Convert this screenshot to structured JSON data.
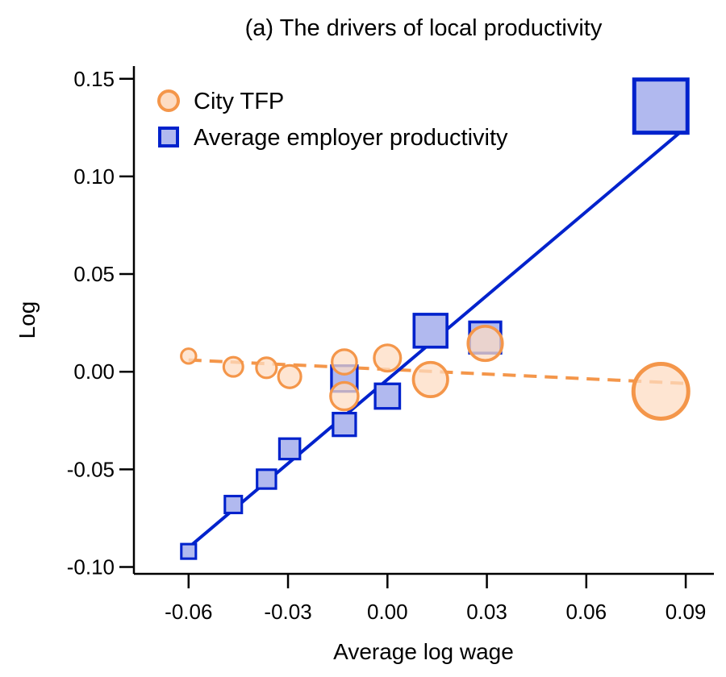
{
  "chart_data": {
    "type": "scatter",
    "title": "(a) The drivers of local productivity",
    "xlabel": "Average log wage",
    "ylabel": "Log",
    "xlim": [
      -0.0765,
      0.0985
    ],
    "ylim": [
      -0.1035,
      0.1565
    ],
    "xticks": [
      -0.06,
      -0.03,
      0.0,
      0.03,
      0.06,
      0.09
    ],
    "xtick_labels": [
      "-0.06",
      "-0.03",
      "0.00",
      "0.03",
      "0.06",
      "0.09"
    ],
    "yticks": [
      -0.1,
      -0.05,
      0.0,
      0.05,
      0.1,
      0.15
    ],
    "ytick_labels": [
      "-0.10",
      "-0.05",
      "0.00",
      "0.05",
      "0.10",
      "0.15"
    ],
    "grid": false,
    "legend_position": "top-left",
    "series": [
      {
        "name": "City TFP",
        "marker": "circle",
        "color": "#F4964A",
        "fill": "#FDDCC3",
        "line_style": "dashed",
        "fit_line": {
          "x": [
            -0.06,
            0.09
          ],
          "y": [
            0.006,
            -0.006
          ]
        },
        "points": [
          {
            "x": -0.06,
            "y": 0.008,
            "size": 0.03
          },
          {
            "x": -0.0465,
            "y": 0.0025,
            "size": 0.07
          },
          {
            "x": -0.0365,
            "y": 0.002,
            "size": 0.08
          },
          {
            "x": -0.0295,
            "y": -0.0025,
            "size": 0.11
          },
          {
            "x": -0.013,
            "y": 0.005,
            "size": 0.14
          },
          {
            "x": -0.013,
            "y": -0.0125,
            "size": 0.19
          },
          {
            "x": 0.0,
            "y": 0.007,
            "size": 0.17
          },
          {
            "x": 0.013,
            "y": -0.004,
            "size": 0.33
          },
          {
            "x": 0.0295,
            "y": 0.0145,
            "size": 0.33
          },
          {
            "x": 0.0825,
            "y": -0.01,
            "size": 1.0
          }
        ]
      },
      {
        "name": "Average employer productivity",
        "marker": "square",
        "color": "#0022CC",
        "fill": "#B1B9EF",
        "line_style": "solid",
        "fit_line": {
          "x": [
            -0.06,
            0.09
          ],
          "y": [
            -0.09,
            0.125
          ]
        },
        "points": [
          {
            "x": -0.06,
            "y": -0.092,
            "size": 0.03
          },
          {
            "x": -0.0465,
            "y": -0.068,
            "size": 0.05
          },
          {
            "x": -0.0365,
            "y": -0.055,
            "size": 0.07
          },
          {
            "x": -0.0295,
            "y": -0.0395,
            "size": 0.09
          },
          {
            "x": -0.013,
            "y": -0.027,
            "size": 0.12
          },
          {
            "x": -0.013,
            "y": -0.0035,
            "size": 0.17
          },
          {
            "x": 0.0,
            "y": -0.0125,
            "size": 0.15
          },
          {
            "x": 0.013,
            "y": 0.021,
            "size": 0.32
          },
          {
            "x": 0.0295,
            "y": 0.0175,
            "size": 0.28
          },
          {
            "x": 0.0825,
            "y": 0.136,
            "size": 1.0
          }
        ]
      }
    ]
  }
}
